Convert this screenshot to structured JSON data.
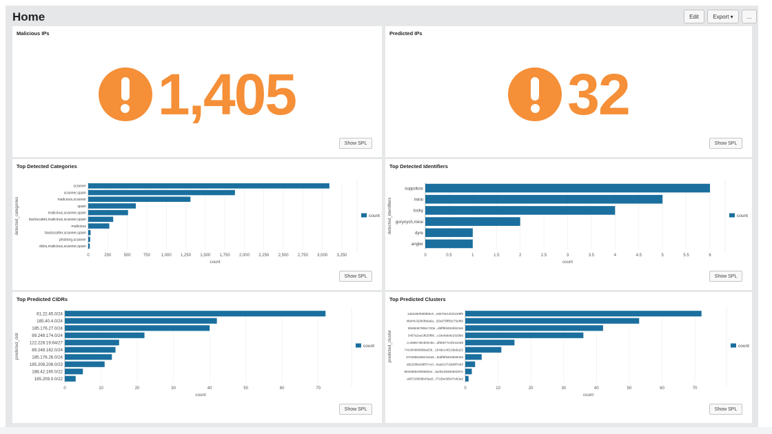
{
  "header": {
    "title": "Home",
    "edit_label": "Edit",
    "export_label": "Export ▾",
    "more_label": "..."
  },
  "panels": {
    "malicious_ips": {
      "title": "Malicious IPs",
      "value": "1,405",
      "icon": "exclamation-circle-icon",
      "show_spl": "Show SPL"
    },
    "predicted_ips": {
      "title": "Predicted IPs",
      "value": "32",
      "icon": "exclamation-circle-icon",
      "show_spl": "Show SPL"
    },
    "categories": {
      "title": "Top Detected Categories",
      "show_spl": "Show SPL"
    },
    "identifiers": {
      "title": "Top Detected Identifiers",
      "show_spl": "Show SPL"
    },
    "cidrs": {
      "title": "Top Predicted CIDRs",
      "show_spl": "Show SPL"
    },
    "clusters": {
      "title": "Top Predicted Clusters",
      "show_spl": "Show SPL"
    }
  },
  "colors": {
    "accent": "#f58f38",
    "bar": "#1a6f9e",
    "background": "#e6e7e9"
  },
  "chart_data": [
    {
      "type": "bar",
      "orientation": "horizontal",
      "title": "Top Detected Categories",
      "xlabel": "count",
      "ylabel": "detected_categories",
      "categories": [
        "scanner",
        "scanner,spam",
        "malicious,scanner",
        "spam",
        "malicious,scanner,spam",
        "backscatter,malicious,scanner,spam",
        "malicious",
        "backscatter,scanner,spam",
        "phishing,scanner",
        "ddos,malicious,scanner,spam"
      ],
      "series": [
        {
          "name": "count",
          "values": [
            3090,
            1880,
            1310,
            610,
            510,
            320,
            270,
            30,
            25,
            20
          ]
        }
      ],
      "xlim": [
        0,
        3250
      ],
      "ticks": [
        "0",
        "250",
        "500",
        "750",
        "1,000",
        "1,250",
        "1,500",
        "1,750",
        "2,000",
        "2,250",
        "2,500",
        "2,750",
        "3,000",
        "3,250"
      ],
      "legend": "right"
    },
    {
      "type": "bar",
      "orientation": "horizontal",
      "title": "Top Detected Identifiers",
      "xlabel": "count",
      "ylabel": "detected_identifiers",
      "categories": [
        "suppobox",
        "mirai",
        "locky",
        "gorynych,mirai",
        "dyre",
        "angler"
      ],
      "series": [
        {
          "name": "count",
          "values": [
            6,
            5,
            4,
            2,
            1,
            1
          ]
        }
      ],
      "xlim": [
        0,
        6
      ],
      "ticks": [
        "0",
        "0.5",
        "1",
        "1.5",
        "2",
        "2.5",
        "3",
        "3.5",
        "4",
        "4.5",
        "5",
        "5.5",
        "6"
      ],
      "legend": "right"
    },
    {
      "type": "bar",
      "orientation": "horizontal",
      "title": "Top Predicted CIDRs",
      "xlabel": "count",
      "ylabel": "predicted_cidr",
      "categories": [
        "81.22.45.0/24",
        "185.40.4.0/24",
        "185.176.27.0/24",
        "89.248.174.0/24",
        "122.228.19.64/27",
        "89.248.162.0/24",
        "185.176.26.0/24",
        "185.208.208.0/23",
        "188.42.160.0/22",
        "185.209.0.0/22"
      ],
      "series": [
        {
          "name": "count",
          "values": [
            72,
            42,
            40,
            22,
            15,
            14,
            13,
            11,
            5,
            3
          ]
        }
      ],
      "xlim": [
        0,
        75
      ],
      "ticks": [
        "0",
        "10",
        "20",
        "30",
        "40",
        "50",
        "60",
        "70"
      ],
      "legend": "right"
    },
    {
      "type": "bar",
      "orientation": "horizontal",
      "title": "Top Predicted Clusters",
      "xlabel": "count",
      "ylabel": "predicted_cluster",
      "categories": [
        "1a6429eb685b6c0...e5676e140cbc89f9",
        "4bef4c320b3b9a6a...25ed75ff58c75ef89",
        "5fe884678b5c720e...d5ff9fd492d522e8",
        "3497a2ae1fb20f80...c1be6de9e2929b6",
        "cc4585749cb00c9e...af90677e4f412e68",
        "74c0849669bba036...154de14013da5a22",
        "37049562950104a6...9ddf5f9400569345",
        "dd226bbc89f57cc0...6aa5c372dd9f7e60",
        "9beb96be0909604e...3a4b10848eb6287e",
        "a08720b58b43ae6...f722be36547eb3a2"
      ],
      "series": [
        {
          "name": "count",
          "values": [
            72,
            53,
            42,
            36,
            15,
            11,
            5,
            3,
            2,
            1
          ]
        }
      ],
      "xlim": [
        0,
        75
      ],
      "ticks": [
        "0",
        "10",
        "20",
        "30",
        "40",
        "50",
        "60",
        "70"
      ],
      "legend": "right"
    }
  ]
}
